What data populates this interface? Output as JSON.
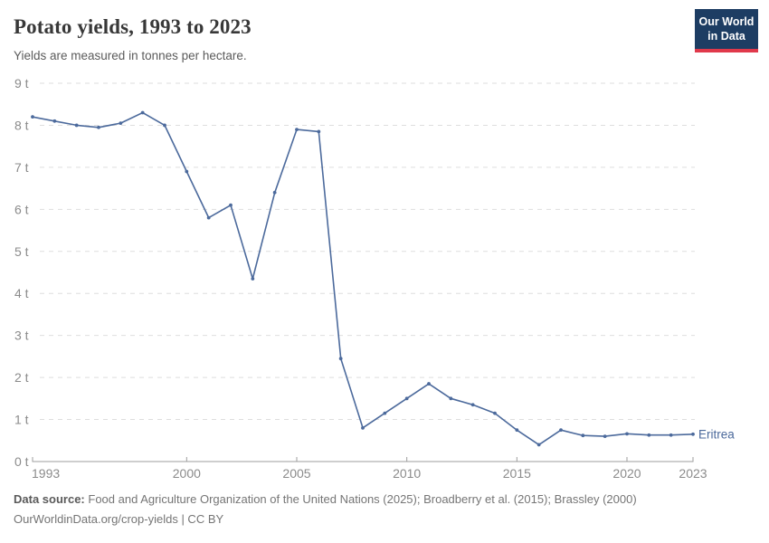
{
  "header": {
    "title": "Potato yields, 1993 to 2023",
    "subtitle": "Yields are measured in tonnes per hectare."
  },
  "logo": {
    "line1": "Our World",
    "line2": "in Data",
    "bg_color": "#1d3d63",
    "accent_color": "#e0394b",
    "text_color": "#ffffff"
  },
  "chart_data": {
    "type": "line",
    "title": "Potato yields, 1993 to 2023",
    "ylabel": "tonnes per hectare",
    "xlabel": "",
    "x": [
      1993,
      1994,
      1995,
      1996,
      1997,
      1998,
      1999,
      2000,
      2001,
      2002,
      2003,
      2004,
      2005,
      2006,
      2007,
      2008,
      2009,
      2010,
      2011,
      2012,
      2013,
      2014,
      2015,
      2016,
      2017,
      2018,
      2019,
      2020,
      2021,
      2022,
      2023
    ],
    "series": [
      {
        "name": "Eritrea",
        "color": "#4c6a9c",
        "values": [
          8.2,
          8.1,
          8.0,
          7.95,
          8.05,
          8.3,
          8.0,
          6.9,
          5.8,
          6.1,
          4.35,
          6.4,
          7.9,
          7.85,
          2.45,
          0.8,
          1.15,
          1.5,
          1.85,
          1.5,
          1.35,
          1.15,
          0.75,
          0.4,
          0.75,
          0.62,
          0.6,
          0.66,
          0.63,
          0.63,
          0.65
        ]
      }
    ],
    "xlim": [
      1993,
      2023
    ],
    "ylim": [
      0,
      9
    ],
    "x_ticks": [
      1993,
      2000,
      2005,
      2010,
      2015,
      2020,
      2023
    ],
    "y_ticks": [
      0,
      1,
      2,
      3,
      4,
      5,
      6,
      7,
      8,
      9
    ],
    "y_tick_suffix": " t",
    "grid": "horizontal-dashed",
    "legend_position": "line-end",
    "grid_color": "#dedede",
    "axis_color": "#9e9e9e",
    "tick_label_color": "#8b8b8b"
  },
  "footer": {
    "datasource_label": "Data source:",
    "datasource_text": "Food and Agriculture Organization of the United Nations (2025); Broadberry et al. (2015); Brassley (2000)",
    "license_text": "OurWorldinData.org/crop-yields | CC BY"
  }
}
